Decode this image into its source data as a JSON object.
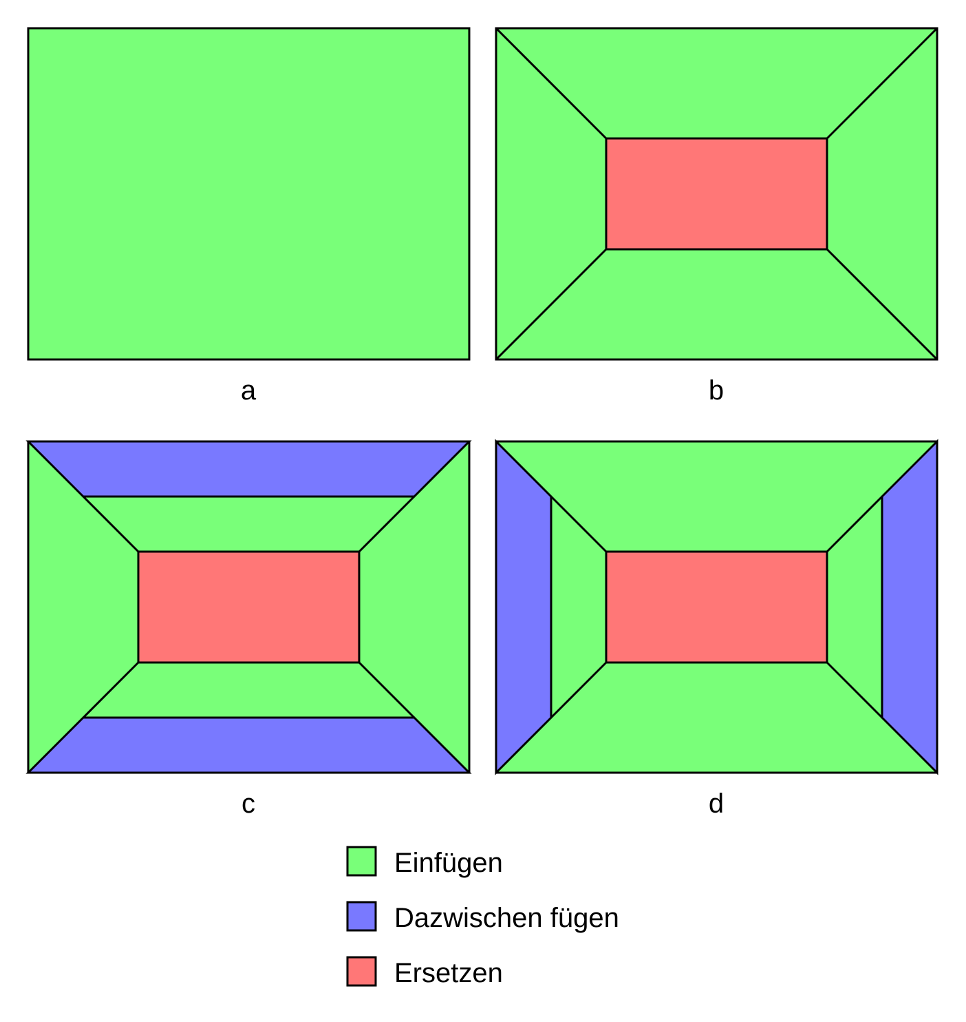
{
  "colors": {
    "insert": "#79ff79",
    "between": "#7979ff",
    "replace": "#ff7777",
    "outline": "#000000"
  },
  "panels": [
    {
      "id": "a",
      "label": "a"
    },
    {
      "id": "b",
      "label": "b"
    },
    {
      "id": "c",
      "label": "c"
    },
    {
      "id": "d",
      "label": "d"
    }
  ],
  "legend": {
    "items": [
      {
        "key": "insert",
        "label": "Einfügen"
      },
      {
        "key": "between",
        "label": "Dazwischen fügen"
      },
      {
        "key": "replace",
        "label": "Ersetzen"
      }
    ]
  }
}
